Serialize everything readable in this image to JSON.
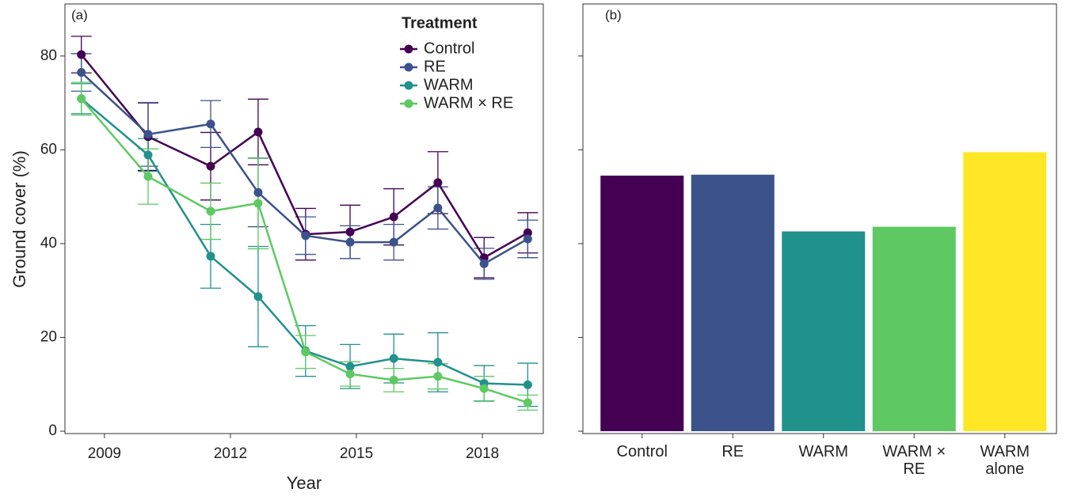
{
  "chart_data": [
    {
      "type": "line",
      "title": "(a)",
      "x_label": "Year",
      "y_label": "Ground cover (%)",
      "legend_title": "Treatment",
      "legend": "top-right",
      "x": [
        2008.45,
        2010.04,
        2011.53,
        2012.66,
        2013.79,
        2014.85,
        2015.89,
        2016.94,
        2018.04,
        2019.08
      ],
      "xlim": [
        2008.06,
        2019.45
      ],
      "xticks": [
        2009,
        2012,
        2015,
        2018
      ],
      "ylim": [
        -0.5,
        91.1
      ],
      "yticks": [
        0,
        20,
        40,
        60,
        80
      ],
      "series": [
        {
          "name": "Control",
          "color": "#440154",
          "values": [
            80.3,
            62.8,
            56.5,
            63.8,
            42.0,
            42.5,
            45.7,
            53.0,
            37.0,
            42.3
          ],
          "errors": [
            3.9,
            7.2,
            7.2,
            7.0,
            5.5,
            5.7,
            6.0,
            6.6,
            4.3,
            4.3
          ]
        },
        {
          "name": "RE",
          "color": "#3b528b",
          "values": [
            76.5,
            63.3,
            65.5,
            50.9,
            41.7,
            40.3,
            40.3,
            47.6,
            35.7,
            41.0
          ],
          "errors": [
            4.0,
            6.8,
            5.0,
            7.3,
            4.0,
            3.5,
            3.8,
            4.5,
            3.3,
            4.0
          ]
        },
        {
          "name": "WARM",
          "color": "#21918c",
          "values": [
            70.9,
            58.9,
            37.3,
            28.7,
            17.1,
            13.8,
            15.5,
            14.7,
            10.2,
            9.9
          ],
          "errors": [
            3.2,
            3.5,
            6.8,
            10.7,
            5.4,
            4.7,
            5.2,
            6.3,
            3.8,
            4.6
          ]
        },
        {
          "name": "WARM × RE",
          "color": "#5ec962",
          "values": [
            70.9,
            54.3,
            46.9,
            48.6,
            16.9,
            12.2,
            10.9,
            11.7,
            9.1,
            6.1
          ],
          "errors": [
            3.5,
            5.9,
            6.0,
            9.7,
            3.5,
            2.6,
            2.5,
            2.7,
            2.6,
            1.6
          ]
        }
      ]
    },
    {
      "type": "bar",
      "title": "(b)",
      "categories": [
        "Control",
        "RE",
        "WARM",
        "WARM × RE",
        "WARM alone"
      ],
      "values": [
        54.5,
        54.7,
        42.6,
        43.6,
        59.5
      ],
      "colors": [
        "#440154",
        "#3b528b",
        "#21918c",
        "#5ec962",
        "#fde725"
      ],
      "ylim": [
        -0.5,
        91.1
      ],
      "yticks": [
        0,
        20,
        40,
        60,
        80
      ]
    }
  ]
}
